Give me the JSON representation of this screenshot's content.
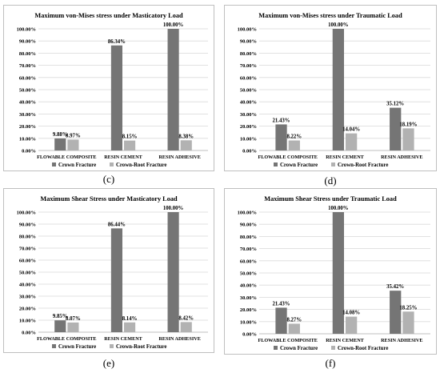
{
  "colors": {
    "crown_fracture": "#757575",
    "crown_root_fracture": "#b2b2b2",
    "grid": "#d9d9d9",
    "frame": "#bfbfbf"
  },
  "chart_data": [
    {
      "type": "bar",
      "panel_label": "(c)",
      "title": "Maximum von-Mises stress under Masticatory Load",
      "categories": [
        "FLOWABLE COMPOSITE",
        "RESIN CEMENT",
        "RESIN ADHESIVE"
      ],
      "series": [
        {
          "name": "Crown Fracture",
          "values": [
            9.88,
            86.34,
            100.0
          ],
          "labels": [
            "9.88%",
            "86.34%",
            "100.00%"
          ]
        },
        {
          "name": "Crown-Root Fracture",
          "values": [
            8.97,
            8.15,
            8.38
          ],
          "labels": [
            "8.97%",
            "8.15%",
            "8.38%"
          ]
        }
      ],
      "ylim": [
        0,
        100
      ],
      "yticks": [
        0,
        10,
        20,
        30,
        40,
        50,
        60,
        70,
        80,
        90,
        100
      ],
      "ytick_labels": [
        "0.00%",
        "10.00%",
        "20.00%",
        "30.00%",
        "40.00%",
        "50.00%",
        "60.00%",
        "70.00%",
        "80.00%",
        "90.00%",
        "100.00%"
      ],
      "grid": true,
      "legend": "bottom"
    },
    {
      "type": "bar",
      "panel_label": "(d)",
      "title": "Maximum von-Mises stress under Traumatic Load",
      "categories": [
        "FLOWABLE COMPOSITE",
        "RESIN CEMENT",
        "RESIN ADHESIVE"
      ],
      "series": [
        {
          "name": "Crown Fracture",
          "values": [
            21.43,
            100.0,
            35.12
          ],
          "labels": [
            "21.43%",
            "100.00%",
            "35.12%"
          ]
        },
        {
          "name": "Crown-Root Fracture",
          "values": [
            8.22,
            14.04,
            18.19
          ],
          "labels": [
            "8.22%",
            "14.04%",
            "18.19%"
          ]
        }
      ],
      "ylim": [
        0,
        100
      ],
      "yticks": [
        0,
        10,
        20,
        30,
        40,
        50,
        60,
        70,
        80,
        90,
        100
      ],
      "ytick_labels": [
        "0.00%",
        "10.00%",
        "20.00%",
        "30.00%",
        "40.00%",
        "50.00%",
        "60.00%",
        "70.00%",
        "80.00%",
        "90.00%",
        "100.00%"
      ],
      "grid": true,
      "legend": "bottom"
    },
    {
      "type": "bar",
      "panel_label": "(e)",
      "title": "Maximum Shear Stress under Masticatory Load",
      "categories": [
        "FLOWABLE COMPOSITE",
        "RESIN CEMENT",
        "RESIN ADHESIVE"
      ],
      "series": [
        {
          "name": "Crown Fracture",
          "values": [
            9.85,
            86.44,
            100.0
          ],
          "labels": [
            "9.85%",
            "86.44%",
            "100.00%"
          ]
        },
        {
          "name": "Crown-Root Fracture",
          "values": [
            8.07,
            8.14,
            8.42
          ],
          "labels": [
            "8.07%",
            "8.14%",
            "8.42%"
          ]
        }
      ],
      "ylim": [
        0,
        100
      ],
      "yticks": [
        0,
        10,
        20,
        30,
        40,
        50,
        60,
        70,
        80,
        90,
        100
      ],
      "ytick_labels": [
        "0.00%",
        "10.00%",
        "20.00%",
        "30.00%",
        "40.00%",
        "50.00%",
        "60.00%",
        "70.00%",
        "80.00%",
        "90.00%",
        "100.00%"
      ],
      "grid": true,
      "legend": "bottom"
    },
    {
      "type": "bar",
      "panel_label": "(f)",
      "title": "Maximum Shear Stress under Traumatic Load",
      "categories": [
        "FLOWABLE COMPOSITE",
        "RESIN CEMENT",
        "RESIN ADHESIVE"
      ],
      "series": [
        {
          "name": "Crown Fracture",
          "values": [
            21.43,
            100.0,
            35.42
          ],
          "labels": [
            "21.43%",
            "100.00%",
            "35.42%"
          ]
        },
        {
          "name": "Crown-Root Fracture",
          "values": [
            8.27,
            14.08,
            18.25
          ],
          "labels": [
            "8.27%",
            "14.08%",
            "18.25%"
          ]
        }
      ],
      "ylim": [
        0,
        100
      ],
      "yticks": [
        0,
        10,
        20,
        30,
        40,
        50,
        60,
        70,
        80,
        90,
        100
      ],
      "ytick_labels": [
        "0.00%",
        "10.00%",
        "20.00%",
        "30.00%",
        "40.00%",
        "50.00%",
        "60.00%",
        "70.00%",
        "80.00%",
        "90.00%",
        "100.00%"
      ],
      "grid": true,
      "legend": "bottom"
    }
  ]
}
